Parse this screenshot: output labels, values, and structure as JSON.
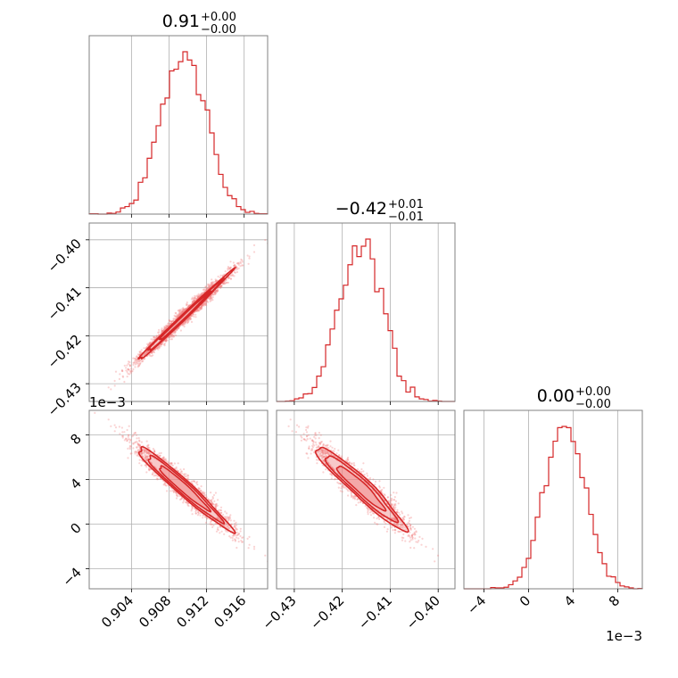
{
  "colors": {
    "series": "#d62728",
    "fill": "#f08080",
    "grid": "#b0b0b0",
    "frame": "#808080"
  },
  "chart_data": {
    "type": "corner",
    "grid": true,
    "parameters": [
      {
        "title_main": "0.91",
        "title_plus": "+0.00",
        "title_minus": "−0.00",
        "median": 0.9095,
        "std": 0.0024,
        "range": [
          0.8995,
          0.9185
        ],
        "ticks": [
          0.904,
          0.908,
          0.912,
          0.916
        ],
        "tick_labels": [
          "0.904",
          "0.908",
          "0.912",
          "0.916"
        ]
      },
      {
        "title_main": "−0.42",
        "title_plus": "+0.01",
        "title_minus": "−0.01",
        "median": -0.4162,
        "std": 0.0045,
        "range": [
          -0.4337,
          -0.3965
        ],
        "ticks": [
          -0.43,
          -0.42,
          -0.41,
          -0.4
        ],
        "tick_labels": [
          "−0.43",
          "−0.42",
          "−0.41",
          "−0.40"
        ]
      },
      {
        "title_main": "0.00",
        "title_plus": "+0.00",
        "title_minus": "−0.00",
        "median": 0.0033,
        "std": 0.0018,
        "range": [
          -0.0058,
          0.0102
        ],
        "ticks": [
          -0.004,
          0.0,
          0.004,
          0.008
        ],
        "tick_labels": [
          "−4",
          "0",
          "4",
          "8"
        ],
        "offset_label": "1e−3"
      }
    ],
    "hist_bins": 40,
    "hist_samples": 6000,
    "contour_levels": [
      0.39,
      0.86,
      1.39
    ]
  }
}
